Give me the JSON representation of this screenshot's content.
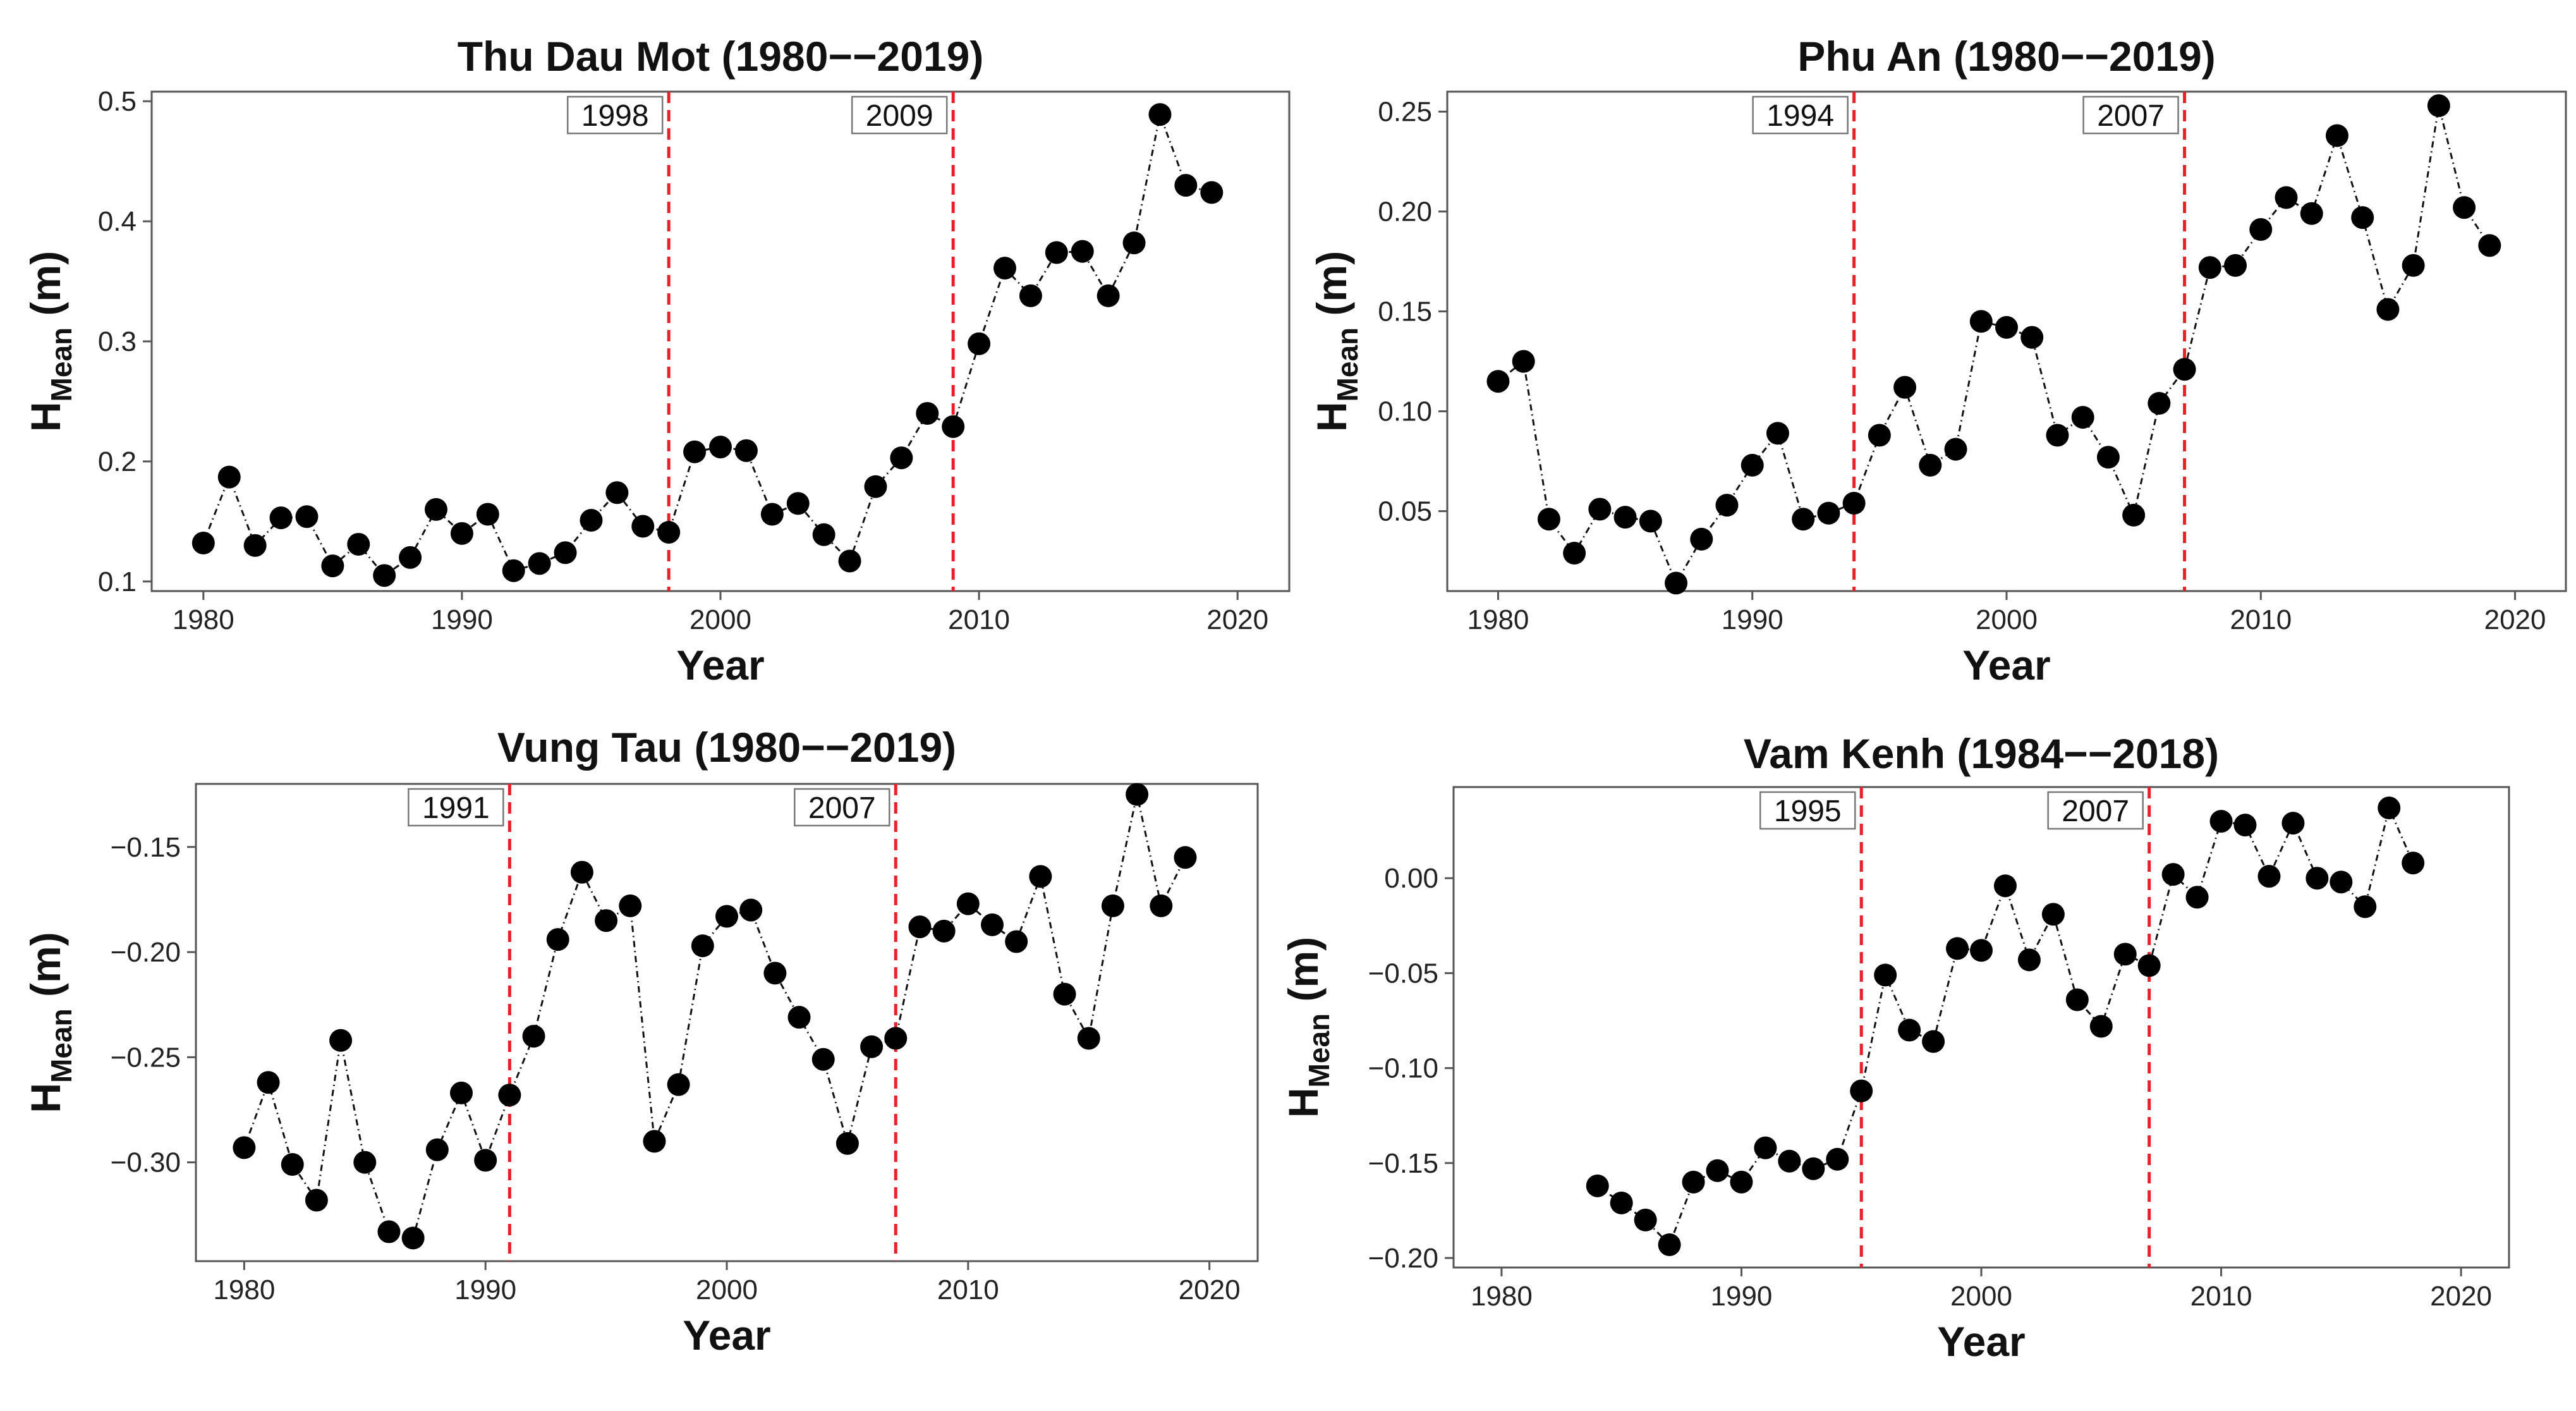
{
  "figure": {
    "xlabel": "Year",
    "ylabel_main": "H",
    "ylabel_sub": "Mean",
    "ylabel_unit": " (m)"
  },
  "chart_data": [
    {
      "type": "line",
      "title": "Thu Dau Mot (1980−−2019)",
      "xlabel": "Year",
      "ylabel": "HMean (m)",
      "xlim": [
        1978,
        2022
      ],
      "ylim": [
        0.092,
        0.508
      ],
      "xticks": [
        1980,
        1990,
        2000,
        2010,
        2020
      ],
      "xtick_labels": [
        "1980",
        "1990",
        "2000",
        "2010",
        "2020"
      ],
      "yticks": [
        0.1,
        0.2,
        0.3,
        0.4,
        0.5
      ],
      "ytick_labels": [
        "0.1",
        "0.2",
        "0.3",
        "0.4",
        "0.5"
      ],
      "breakpoints": [
        1998,
        2009
      ],
      "breakpoint_labels": [
        "1998",
        "2009"
      ],
      "marker_color": "#000000",
      "break_color": "#e8202a",
      "x": [
        1980,
        1981,
        1982,
        1983,
        1984,
        1985,
        1986,
        1987,
        1988,
        1989,
        1990,
        1991,
        1992,
        1993,
        1994,
        1995,
        1996,
        1997,
        1998,
        1999,
        2000,
        2001,
        2002,
        2003,
        2004,
        2005,
        2006,
        2007,
        2008,
        2009,
        2010,
        2011,
        2012,
        2013,
        2014,
        2015,
        2016,
        2017,
        2018,
        2019
      ],
      "y": [
        0.132,
        0.187,
        0.13,
        0.153,
        0.154,
        0.113,
        0.131,
        0.105,
        0.12,
        0.16,
        0.14,
        0.156,
        0.109,
        0.115,
        0.124,
        0.151,
        0.174,
        0.146,
        0.141,
        0.208,
        0.212,
        0.209,
        0.156,
        0.165,
        0.139,
        0.117,
        0.179,
        0.203,
        0.24,
        0.229,
        0.298,
        0.361,
        0.338,
        0.374,
        0.375,
        0.338,
        0.382,
        0.489,
        0.43,
        0.424
      ]
    },
    {
      "type": "line",
      "title": "Phu An (1980−−2019)",
      "xlabel": "Year",
      "ylabel": "HMean (m)",
      "xlim": [
        1978,
        2022
      ],
      "ylim": [
        0.01,
        0.26
      ],
      "xticks": [
        1980,
        1990,
        2000,
        2010,
        2020
      ],
      "xtick_labels": [
        "1980",
        "1990",
        "2000",
        "2010",
        "2020"
      ],
      "yticks": [
        0.05,
        0.1,
        0.15,
        0.2,
        0.25
      ],
      "ytick_labels": [
        "0.05",
        "0.10",
        "0.15",
        "0.20",
        "0.25"
      ],
      "breakpoints": [
        1994,
        2007
      ],
      "breakpoint_labels": [
        "1994",
        "2007"
      ],
      "marker_color": "#000000",
      "break_color": "#e8202a",
      "x": [
        1980,
        1981,
        1982,
        1983,
        1984,
        1985,
        1986,
        1987,
        1988,
        1989,
        1990,
        1991,
        1992,
        1993,
        1994,
        1995,
        1996,
        1997,
        1998,
        1999,
        2000,
        2001,
        2002,
        2003,
        2004,
        2005,
        2006,
        2007,
        2008,
        2009,
        2010,
        2011,
        2012,
        2013,
        2014,
        2015,
        2016,
        2017,
        2018,
        2019
      ],
      "y": [
        0.115,
        0.125,
        0.046,
        0.029,
        0.051,
        0.047,
        0.045,
        0.014,
        0.036,
        0.053,
        0.073,
        0.089,
        0.046,
        0.049,
        0.054,
        0.088,
        0.112,
        0.073,
        0.081,
        0.145,
        0.142,
        0.137,
        0.088,
        0.097,
        0.077,
        0.048,
        0.104,
        0.121,
        0.172,
        0.173,
        0.191,
        0.207,
        0.199,
        0.238,
        0.197,
        0.151,
        0.173,
        0.253,
        0.202,
        0.183
      ]
    },
    {
      "type": "line",
      "title": "Vung Tau (1980−−2019)",
      "xlabel": "Year",
      "ylabel": "HMean (m)",
      "xlim": [
        1978,
        2022
      ],
      "ylim": [
        -0.347,
        -0.12
      ],
      "xticks": [
        1980,
        1990,
        2000,
        2010,
        2020
      ],
      "xtick_labels": [
        "1980",
        "1990",
        "2000",
        "2010",
        "2020"
      ],
      "yticks": [
        -0.3,
        -0.25,
        -0.2,
        -0.15
      ],
      "ytick_labels": [
        "−0.30",
        "−0.25",
        "−0.20",
        "−0.15"
      ],
      "breakpoints": [
        1991,
        2007
      ],
      "breakpoint_labels": [
        "1991",
        "2007"
      ],
      "marker_color": "#000000",
      "break_color": "#e8202a",
      "x": [
        1980,
        1981,
        1982,
        1983,
        1984,
        1985,
        1986,
        1987,
        1988,
        1989,
        1990,
        1991,
        1992,
        1993,
        1994,
        1995,
        1996,
        1997,
        1998,
        1999,
        2000,
        2001,
        2002,
        2003,
        2004,
        2005,
        2006,
        2007,
        2008,
        2009,
        2010,
        2011,
        2012,
        2013,
        2014,
        2015,
        2016,
        2017,
        2018,
        2019
      ],
      "y": [
        -0.293,
        -0.262,
        -0.301,
        -0.318,
        -0.242,
        -0.3,
        -0.333,
        -0.336,
        -0.294,
        -0.267,
        -0.299,
        -0.268,
        -0.24,
        -0.194,
        -0.162,
        -0.185,
        -0.178,
        -0.29,
        -0.263,
        -0.197,
        -0.183,
        -0.18,
        -0.21,
        -0.231,
        -0.251,
        -0.291,
        -0.245,
        -0.241,
        -0.188,
        -0.19,
        -0.177,
        -0.187,
        -0.195,
        -0.164,
        -0.22,
        -0.241,
        -0.178,
        -0.125,
        -0.178,
        -0.155
      ]
    },
    {
      "type": "line",
      "title": "Vam Kenh (1984−−2018)",
      "xlabel": "Year",
      "ylabel": "HMean (m)",
      "xlim": [
        1978,
        2022
      ],
      "ylim": [
        -0.205,
        0.048
      ],
      "xticks": [
        1980,
        1990,
        2000,
        2010,
        2020
      ],
      "xtick_labels": [
        "1980",
        "1990",
        "2000",
        "2010",
        "2020"
      ],
      "yticks": [
        -0.2,
        -0.15,
        -0.1,
        -0.05,
        0.0
      ],
      "ytick_labels": [
        "−0.20",
        "−0.15",
        "−0.10",
        "−0.05",
        "0.00"
      ],
      "breakpoints": [
        1995,
        2007
      ],
      "breakpoint_labels": [
        "1995",
        "2007"
      ],
      "marker_color": "#000000",
      "break_color": "#e8202a",
      "x": [
        1984,
        1985,
        1986,
        1987,
        1988,
        1989,
        1990,
        1991,
        1992,
        1993,
        1994,
        1995,
        1996,
        1997,
        1998,
        1999,
        2000,
        2001,
        2002,
        2003,
        2004,
        2005,
        2006,
        2007,
        2008,
        2009,
        2010,
        2011,
        2012,
        2013,
        2014,
        2015,
        2016,
        2017,
        2018
      ],
      "y": [
        -0.162,
        -0.171,
        -0.18,
        -0.193,
        -0.16,
        -0.154,
        -0.16,
        -0.142,
        -0.149,
        -0.153,
        -0.148,
        -0.112,
        -0.051,
        -0.08,
        -0.086,
        -0.037,
        -0.038,
        -0.004,
        -0.043,
        -0.019,
        -0.064,
        -0.078,
        -0.04,
        -0.046,
        0.002,
        -0.01,
        0.03,
        0.028,
        0.001,
        0.029,
        0.0,
        -0.002,
        -0.015,
        0.037,
        0.008
      ]
    }
  ]
}
